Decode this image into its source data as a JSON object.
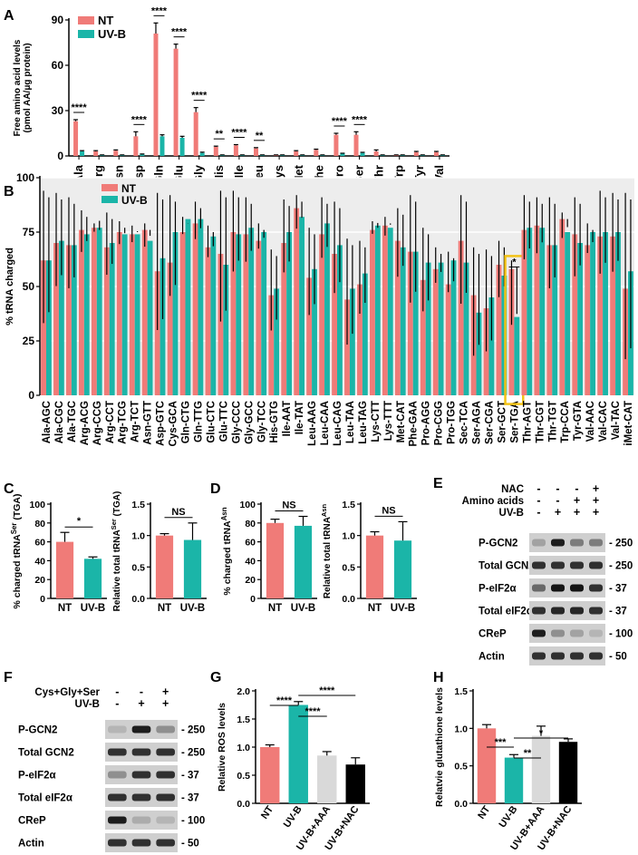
{
  "colors": {
    "nt": "#f07b78",
    "uvb": "#1bb5a8",
    "aa": "#d9d9d9",
    "nac": "#000000",
    "highlight": "#f3c316",
    "grid": "#ededed",
    "blot_bg": "#cfcfcf"
  },
  "panel_labels": [
    "A",
    "B",
    "C",
    "D",
    "E",
    "F",
    "G",
    "H"
  ],
  "chart_data": [
    {
      "id": "A",
      "type": "bar",
      "ylabel": "Free amino acid levels (pmol AA/μg protein)",
      "ylabel_lines": [
        "Free amino acid levels",
        "(pmol AA/μg protein)"
      ],
      "ylim": [
        0,
        90
      ],
      "yticks": [
        "0",
        "30",
        "60",
        "90"
      ],
      "legend": [
        "NT",
        "UV-B"
      ],
      "categories": [
        "Ala",
        "Arg",
        "Asn",
        "Asp",
        "Gln",
        "Glu",
        "Gly",
        "His",
        "Ile",
        "Leu",
        "Lys",
        "Met",
        "Phe",
        "Pro",
        "Ser",
        "Thr",
        "Trp",
        "Tyr",
        "Val"
      ],
      "series": [
        {
          "name": "NT",
          "values": [
            23,
            3,
            3.5,
            13,
            81,
            71,
            29,
            6,
            7,
            5,
            0.5,
            3,
            4,
            14,
            14,
            3,
            0.5,
            2.5,
            2.5
          ],
          "errors": [
            1,
            0.5,
            0.5,
            3,
            7,
            3,
            3,
            0.5,
            0.5,
            0.5,
            0.2,
            0.5,
            0.5,
            1,
            2,
            1,
            0.2,
            0.5,
            0.5
          ]
        },
        {
          "name": "UV-B",
          "values": [
            3,
            0.5,
            0.5,
            1,
            13,
            12,
            2,
            0.5,
            0.5,
            0.5,
            0.5,
            0.5,
            0.5,
            1.5,
            2,
            0.5,
            0.5,
            0.5,
            0.5
          ],
          "errors": [
            0.5,
            0.2,
            0.2,
            0.3,
            1,
            1,
            0.5,
            0.2,
            0.2,
            0.2,
            0.2,
            0.2,
            0.2,
            0.3,
            0.4,
            0.2,
            0.2,
            0.2,
            0.2
          ]
        }
      ],
      "annotations": [
        {
          "cat": "Ala",
          "text": "****"
        },
        {
          "cat": "Asp",
          "text": "****"
        },
        {
          "cat": "Gln",
          "text": "****"
        },
        {
          "cat": "Glu",
          "text": "****"
        },
        {
          "cat": "Gly",
          "text": "****"
        },
        {
          "cat": "His",
          "text": "**"
        },
        {
          "cat": "Ile",
          "text": "****"
        },
        {
          "cat": "Leu",
          "text": "**"
        },
        {
          "cat": "Pro",
          "text": "****"
        },
        {
          "cat": "Ser",
          "text": "****"
        }
      ]
    },
    {
      "id": "B",
      "type": "bar",
      "ylabel": "% tRNA charged",
      "ylim": [
        0,
        100
      ],
      "yticks": [
        "0",
        "25",
        "50",
        "75",
        "100"
      ],
      "legend": [
        "NT",
        "UV-B"
      ],
      "categories": [
        "Ala-AGC",
        "Ala-CGC",
        "Ala-TGC",
        "Arg-ACG",
        "Arg-CCG",
        "Arg-CCT",
        "Arg-TCG",
        "Arg-TCT",
        "Asn-GTT",
        "Asp-GTC",
        "Cys-GCA",
        "Gln-CTG",
        "Gln-TTG",
        "Glu-CTC",
        "Glu-TTC",
        "Gly-CCC",
        "Gly-GCC",
        "Gly-TCC",
        "His-GTG",
        "Ile-AAT",
        "Ile-TAT",
        "Leu-AAG",
        "Leu-CAA",
        "Leu-CAG",
        "Leu-TAA",
        "Leu-TAG",
        "Lys-CTT",
        "Lys-TTT",
        "Met-CAT",
        "Phe-GAA",
        "Pro-AGG",
        "Pro-CGG",
        "Pro-TGG",
        "Sec-TCA",
        "Ser-AGA",
        "Ser-CGA",
        "Ser-GCT",
        "Ser-TGA",
        "Thr-AGT",
        "Thr-CGT",
        "Thr-TGT",
        "Trp-CCA",
        "Tyr-GTA",
        "Val-AAC",
        "Val-CAC",
        "Val-TAC",
        "iMet-CAT"
      ],
      "series": [
        {
          "name": "NT",
          "values": [
            62,
            70,
            69,
            76,
            77,
            68,
            75,
            74,
            76,
            57,
            61,
            75,
            79,
            68,
            65,
            75,
            74,
            71,
            46,
            70,
            86,
            54,
            74,
            65,
            44,
            51,
            76,
            78,
            71,
            66,
            53,
            58,
            51,
            71,
            46,
            40,
            60,
            58,
            76,
            78,
            69,
            81,
            74,
            69,
            73,
            73,
            49
          ]
        },
        {
          "name": "UV-B",
          "values": [
            62,
            71,
            69,
            74,
            77,
            70,
            74,
            74,
            71,
            63,
            75,
            81,
            81,
            73,
            60,
            74,
            77,
            75,
            49,
            75,
            82,
            58,
            79,
            69,
            49,
            56,
            78,
            77,
            68,
            66,
            61,
            61,
            62,
            61,
            38,
            45,
            55,
            36,
            77,
            77,
            69,
            75,
            70,
            75,
            75,
            75,
            57
          ]
        }
      ],
      "error_bar_tops": [
        94,
        93,
        91,
        85,
        79,
        84,
        80,
        78,
        79,
        93,
        92,
        82,
        89,
        78,
        94,
        94,
        91,
        79,
        67,
        90,
        92,
        77,
        91,
        89,
        72,
        71,
        80,
        82,
        86,
        92,
        77,
        68,
        66,
        92,
        68,
        67,
        71,
        62,
        92,
        91,
        91,
        84,
        91,
        79,
        94,
        93,
        93
      ],
      "annotations": [
        {
          "cat": "Ser-TGA",
          "text": "*"
        }
      ],
      "highlight": "Ser-TGA"
    },
    {
      "id": "C1",
      "type": "bar",
      "ylabel": "% charged tRNA",
      "ylabel_sup": "Ser",
      "ylabel_suffix": " (TGA)",
      "ylim": [
        0,
        100
      ],
      "yticks": [
        "0",
        "20",
        "40",
        "60",
        "80",
        "100"
      ],
      "categories": [
        "NT",
        "UV-B"
      ],
      "values": [
        60,
        42
      ],
      "errors": [
        10,
        2
      ],
      "annotations": [
        {
          "text": "*"
        }
      ]
    },
    {
      "id": "C2",
      "type": "bar",
      "ylabel": "Relative total tRNA",
      "ylabel_sup": "Ser",
      "ylabel_suffix": " (TGA)",
      "ylim": [
        0,
        1.5
      ],
      "yticks": [
        "0.0",
        "0.5",
        "1.0",
        "1.5"
      ],
      "categories": [
        "NT",
        "UV-B"
      ],
      "values": [
        1.0,
        0.93
      ],
      "errors": [
        0.03,
        0.27
      ],
      "annotations": [
        {
          "text": "NS"
        }
      ]
    },
    {
      "id": "D1",
      "type": "bar",
      "ylabel": "% charged tRNA",
      "ylabel_sup": "Asn",
      "ylabel_suffix": "",
      "ylim": [
        0,
        100
      ],
      "yticks": [
        "0",
        "20",
        "40",
        "60",
        "80",
        "100"
      ],
      "categories": [
        "NT",
        "UV-B"
      ],
      "values": [
        80,
        77
      ],
      "errors": [
        4,
        10
      ],
      "annotations": [
        {
          "text": "NS"
        }
      ]
    },
    {
      "id": "D2",
      "type": "bar",
      "ylabel": "Relative total tRNA",
      "ylabel_sup": "Asn",
      "ylabel_suffix": "",
      "ylim": [
        0,
        1.5
      ],
      "yticks": [
        "0.0",
        "0.5",
        "1.0",
        "1.5"
      ],
      "categories": [
        "NT",
        "UV-B"
      ],
      "values": [
        1.0,
        0.92
      ],
      "errors": [
        0.06,
        0.3
      ],
      "annotations": [
        {
          "text": "NS"
        }
      ]
    },
    {
      "id": "G",
      "type": "bar",
      "ylabel": "Relative ROS levels",
      "ylim": [
        0,
        2.0
      ],
      "yticks": [
        "0.0",
        "0.5",
        "1.0",
        "1.5",
        "2.0"
      ],
      "categories": [
        "NT",
        "UV-B",
        "UV-B+AAA",
        "UV-B+NAC"
      ],
      "values": [
        1.0,
        1.75,
        0.85,
        0.69
      ],
      "errors": [
        0.04,
        0.06,
        0.07,
        0.12
      ],
      "annotations": [
        {
          "text": "****",
          "from": "NT",
          "to": "UV-B"
        },
        {
          "text": "****",
          "from": "UV-B",
          "to": "UV-B+AAA"
        },
        {
          "text": "****",
          "from": "UV-B",
          "to": "UV-B+NAC"
        }
      ]
    },
    {
      "id": "H",
      "type": "bar",
      "ylabel": "Relatvie glutathione levels",
      "ylim": [
        0,
        1.5
      ],
      "yticks": [
        "0.0",
        "0.5",
        "1.0",
        "1.5"
      ],
      "categories": [
        "NT",
        "UV-B",
        "UV-B+AAA",
        "UV-B+NAC"
      ],
      "values": [
        1.0,
        0.61,
        0.9,
        0.82
      ],
      "errors": [
        0.05,
        0.04,
        0.13,
        0.04
      ],
      "annotations": [
        {
          "text": "***",
          "from": "NT",
          "to": "UV-B"
        },
        {
          "text": "**",
          "from": "UV-B",
          "to": "UV-B+AAA"
        },
        {
          "text": "*",
          "from": "UV-B",
          "to": "UV-B+NAC"
        }
      ]
    }
  ],
  "blots": {
    "E": {
      "conditions": [
        {
          "label": "NAC",
          "signs": [
            "-",
            "-",
            "-",
            "+"
          ]
        },
        {
          "label": "Amino acids",
          "signs": [
            "-",
            "-",
            "+",
            "+"
          ]
        },
        {
          "label": "UV-B",
          "signs": [
            "-",
            "+",
            "+",
            "+"
          ]
        }
      ],
      "rows": [
        {
          "label": "P-GCN2",
          "marker": "250",
          "intensity": [
            0.2,
            0.9,
            0.4,
            0.4
          ]
        },
        {
          "label": "Total GCN2",
          "marker": "250",
          "intensity": [
            0.8,
            0.8,
            0.8,
            0.8
          ]
        },
        {
          "label": "P-eIF2α",
          "marker": "37",
          "intensity": [
            0.5,
            0.95,
            0.95,
            0.8
          ]
        },
        {
          "label": "Total eIF2α",
          "marker": "37",
          "intensity": [
            0.8,
            0.85,
            0.85,
            0.8
          ]
        },
        {
          "label": "CReP",
          "marker": "100",
          "intensity": [
            0.9,
            0.3,
            0.2,
            0.1
          ]
        },
        {
          "label": "Actin",
          "marker": "50",
          "intensity": [
            0.8,
            0.8,
            0.8,
            0.8
          ]
        }
      ]
    },
    "F": {
      "conditions": [
        {
          "label": "Cys+Gly+Ser",
          "signs": [
            "-",
            "-",
            "+"
          ]
        },
        {
          "label": "UV-B",
          "signs": [
            "-",
            "+",
            "+"
          ]
        }
      ],
      "rows": [
        {
          "label": "P-GCN2",
          "marker": "250",
          "intensity": [
            0.1,
            0.9,
            0.3
          ]
        },
        {
          "label": "Total GCN2",
          "marker": "250",
          "intensity": [
            0.8,
            0.8,
            0.8
          ]
        },
        {
          "label": "P-eIF2α",
          "marker": "37",
          "intensity": [
            0.3,
            0.8,
            0.8
          ]
        },
        {
          "label": "Total eIF2α",
          "marker": "37",
          "intensity": [
            0.8,
            0.8,
            0.8
          ]
        },
        {
          "label": "CReP",
          "marker": "100",
          "intensity": [
            0.9,
            0.15,
            0.1
          ]
        },
        {
          "label": "Actin",
          "marker": "50",
          "intensity": [
            0.8,
            0.8,
            0.8
          ]
        }
      ]
    }
  }
}
